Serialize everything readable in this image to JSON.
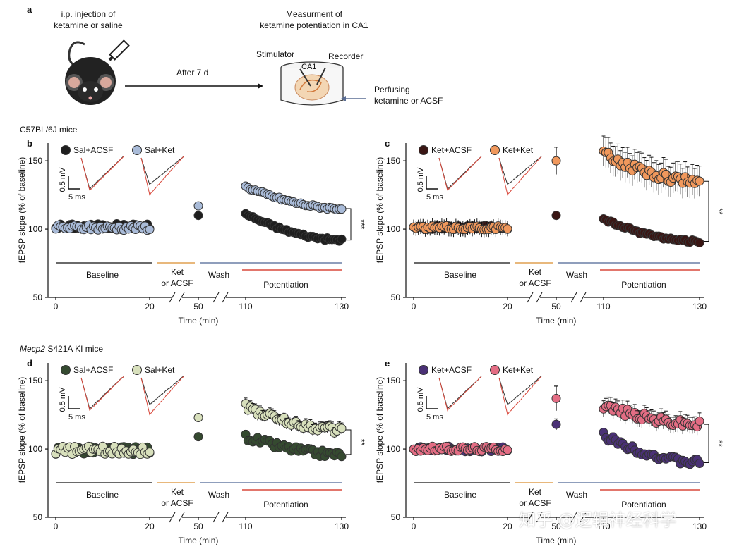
{
  "panel_a": {
    "letter": "a",
    "injection": "i.p. injection of\nketamine or saline",
    "after": "After 7 d",
    "measurement": "Measurment of\nketamine potentiation in CA1",
    "stimulator": "Stimulator",
    "recorder": "Recorder",
    "ca1": "CA1",
    "perfusing": "Perfusing\nketamine or ACSF"
  },
  "group_labels": {
    "c57": "C57BL/6J mice",
    "mecp2_gene": "Mecp2",
    "mecp2_rest": " S421A KI mice"
  },
  "watermark": "知乎 @逻辑神经科学",
  "colors": {
    "sal_acsf": "#1e1e1e",
    "sal_ket": "#a9bbd8",
    "ket_acsf": "#3a1614",
    "ket_ket": "#f0985c",
    "mecp_sal_acsf": "#354a30",
    "mecp_sal_ket": "#d8e0bc",
    "mecp_ket_acsf": "#4a3175",
    "mecp_ket_ket": "#e36d84",
    "ket_line": "#e0a050",
    "wash_line": "#6a7fa6",
    "pot_line": "#d9483b",
    "trace_red": "#d9483b"
  },
  "chart_data": [
    {
      "id": "b",
      "letter": "b",
      "type": "scatter",
      "ylabel": "fEPSP slope (% of baseline)",
      "xlabel": "Time (min)",
      "ylim": [
        50,
        180
      ],
      "yticks": [
        50,
        100,
        150
      ],
      "x_ticks": [
        "0",
        "20",
        "50",
        "110",
        "130"
      ],
      "legend": [
        "Sal+ACSF",
        "Sal+Ket"
      ],
      "scale_v": "0.5 mV",
      "scale_t": "5 ms",
      "phases": [
        "Baseline",
        "Ket\nor ACSF",
        "Wash",
        "Potentiation"
      ],
      "significance": "***",
      "series": [
        {
          "name": "Sal+ACSF",
          "baseline_mean": 102,
          "baseline_noise": 2,
          "ket_value": 110,
          "pot_start": 111,
          "pot_end": 92,
          "pot_noise": 1,
          "err": 0
        },
        {
          "name": "Sal+Ket",
          "baseline_mean": 101,
          "baseline_noise": 2,
          "ket_value": 117,
          "pot_start": 131,
          "pot_end": 115,
          "pot_noise": 1,
          "err": 0
        }
      ]
    },
    {
      "id": "c",
      "letter": "c",
      "type": "scatter",
      "ylabel": "fEPSP slope (% of baseline)",
      "xlabel": "Time (min)",
      "ylim": [
        50,
        180
      ],
      "yticks": [
        50,
        100,
        150
      ],
      "x_ticks": [
        "0",
        "20",
        "50",
        "110",
        "130"
      ],
      "legend": [
        "Ket+ACSF",
        "Ket+Ket"
      ],
      "scale_v": "0.5 mV",
      "scale_t": "5 ms",
      "phases": [
        "Baseline",
        "Ket\nor ACSF",
        "Wash",
        "Potentiation"
      ],
      "significance": "**",
      "series": [
        {
          "name": "Ket+ACSF",
          "baseline_mean": 101,
          "baseline_noise": 1.5,
          "ket_value": 110,
          "pot_start": 107,
          "pot_end": 91,
          "pot_noise": 1,
          "err": 0
        },
        {
          "name": "Ket+Ket",
          "baseline_mean": 101,
          "baseline_noise": 1.5,
          "ket_value": 150,
          "ket_err": 10,
          "pot_start": 155,
          "pot_end": 135,
          "pot_noise": 3,
          "err": 11
        }
      ]
    },
    {
      "id": "d",
      "letter": "d",
      "type": "scatter",
      "ylabel": "fEPSP slope (% of baseline)",
      "xlabel": "Time (min)",
      "ylim": [
        50,
        180
      ],
      "yticks": [
        50,
        100,
        150
      ],
      "x_ticks": [
        "0",
        "20",
        "50",
        "110",
        "130"
      ],
      "legend": [
        "Sal+ACSF",
        "Sal+Ket"
      ],
      "scale_v": "0.5 mV",
      "scale_t": "5 ms",
      "phases": [
        "Baseline",
        "Ket\nor ACSF",
        "Wash",
        "Potentiation"
      ],
      "significance": "**",
      "series": [
        {
          "name": "Sal+ACSF",
          "baseline_mean": 99,
          "baseline_noise": 3,
          "ket_value": 109,
          "pot_start": 109,
          "pot_end": 96,
          "pot_noise": 2.5,
          "err": 3
        },
        {
          "name": "Sal+Ket",
          "baseline_mean": 99,
          "baseline_noise": 3,
          "ket_value": 123,
          "pot_start": 131,
          "pot_end": 114,
          "pot_noise": 2.5,
          "err": 4
        }
      ]
    },
    {
      "id": "e",
      "letter": "e",
      "type": "scatter",
      "ylabel": "fEPSP slope (% of baseline)",
      "xlabel": "Time (min)",
      "ylim": [
        50,
        180
      ],
      "yticks": [
        50,
        100,
        150
      ],
      "x_ticks": [
        "0",
        "20",
        "50",
        "110",
        "130"
      ],
      "legend": [
        "Ket+ACSF",
        "Ket+Ket"
      ],
      "scale_v": "0.5 mV",
      "scale_t": "5 ms",
      "phases": [
        "Baseline",
        "Ket\nor ACSF",
        "Wash",
        "Potentiation"
      ],
      "significance": "**",
      "series": [
        {
          "name": "Ket+ACSF",
          "baseline_mean": 100,
          "baseline_noise": 2,
          "ket_value": 118,
          "ket_err": 4,
          "pot_start": 110,
          "pot_end": 90,
          "pot_noise": 2.5,
          "err": 3
        },
        {
          "name": "Ket+Ket",
          "baseline_mean": 100,
          "baseline_noise": 2,
          "ket_value": 137,
          "ket_err": 9,
          "pot_start": 132,
          "pot_end": 118,
          "pot_noise": 3,
          "err": 6
        }
      ]
    }
  ]
}
